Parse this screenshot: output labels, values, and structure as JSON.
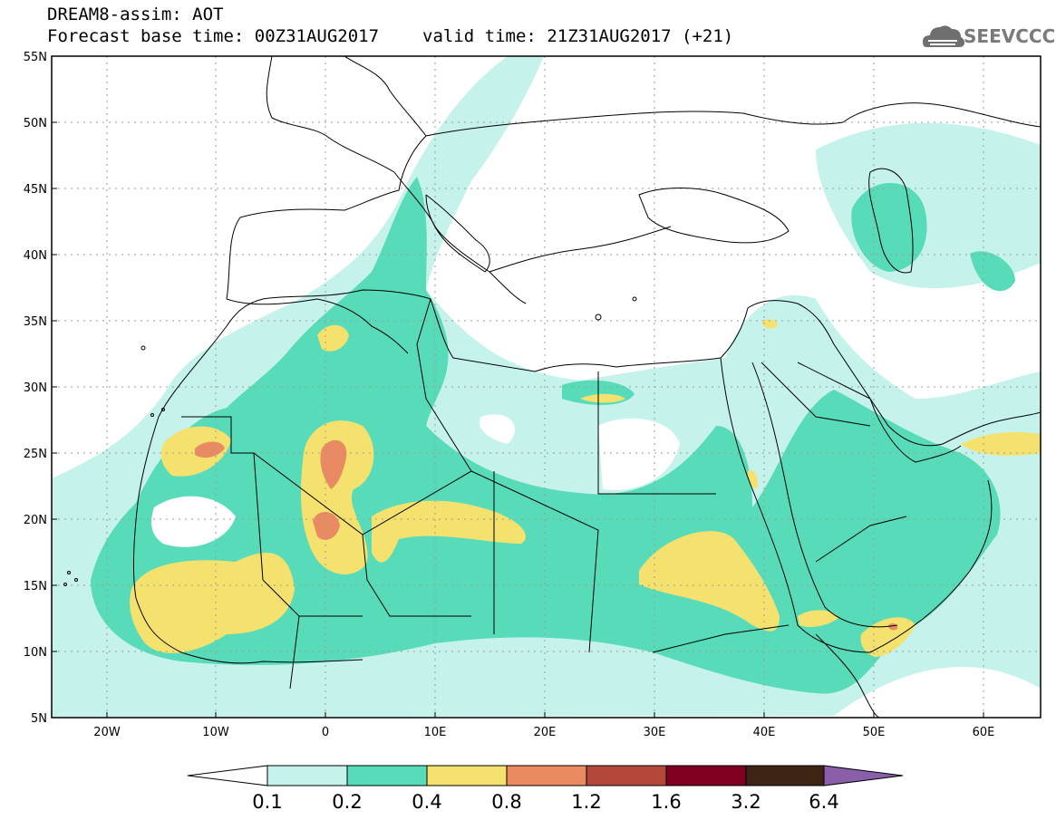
{
  "header": {
    "title_line1": "DREAM8-assim: AOT",
    "base_time": "Forecast base time: 00Z31AUG2017",
    "valid_time": "valid time: 21Z31AUG2017 (+21)"
  },
  "logo": {
    "text": "SEEVCCC",
    "icon": "cloud-icon"
  },
  "map": {
    "lon_range": [
      -25,
      65
    ],
    "lat_range": [
      5,
      55
    ],
    "lat_labels": [
      "55N",
      "50N",
      "45N",
      "40N",
      "35N",
      "30N",
      "25N",
      "20N",
      "15N",
      "10N",
      "5N"
    ],
    "lon_labels": [
      "20W",
      "10W",
      "0",
      "10E",
      "20E",
      "30E",
      "40E",
      "50E",
      "60E"
    ],
    "colors": {
      "sea": "#ffffff",
      "coast": "#000000",
      "grid": "#9a9a9a"
    }
  },
  "colorbar": {
    "labels": [
      "0.1",
      "0.2",
      "0.4",
      "0.8",
      "1.2",
      "1.6",
      "3.2",
      "6.4"
    ],
    "colors": [
      "#ffffff",
      "#c6f2ec",
      "#58dbb8",
      "#f5e16e",
      "#e98a62",
      "#b2473a",
      "#7d0020",
      "#3e2412",
      "#8a5ea8"
    ]
  }
}
